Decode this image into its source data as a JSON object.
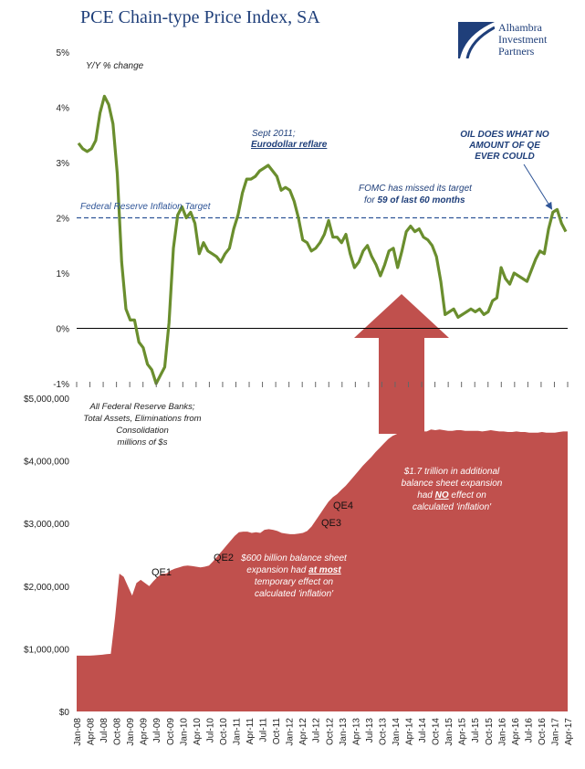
{
  "title": "PCE Chain-type Price Index, SA",
  "logo": {
    "line1": "Alhambra",
    "line2": "Investment",
    "line3": "Partners"
  },
  "colors": {
    "title": "#1f3f7a",
    "pce_line": "#6a8e2e",
    "target_line": "#2f5597",
    "area": "#c0504d",
    "arrow": "#c0504d"
  },
  "chart_data": [
    {
      "type": "line",
      "title": "PCE Chain-type Price Index, SA",
      "ylabel": "Y/Y % change",
      "ylim": [
        -1,
        5
      ],
      "y_ticks": [
        "-1%",
        "0%",
        "1%",
        "2%",
        "3%",
        "4%",
        "5%"
      ],
      "target": {
        "value": 2,
        "label": "Federal Reserve Inflation Target"
      },
      "series": [
        {
          "values": [
            3.35,
            3.25,
            3.2,
            3.25,
            3.4,
            3.9,
            4.2,
            4.05,
            3.7,
            2.8,
            1.2,
            0.35,
            0.15,
            0.15,
            -0.25,
            -0.35,
            -0.65,
            -0.75,
            -1.0,
            -0.85,
            -0.7,
            0.1,
            1.45,
            2.05,
            2.2,
            2.0,
            2.1,
            1.9,
            1.35,
            1.55,
            1.4,
            1.35,
            1.3,
            1.2,
            1.35,
            1.45,
            1.8,
            2.05,
            2.45,
            2.7,
            2.7,
            2.75,
            2.85,
            2.9,
            2.95,
            2.85,
            2.75,
            2.5,
            2.55,
            2.5,
            2.3,
            2.0,
            1.6,
            1.55,
            1.4,
            1.45,
            1.55,
            1.7,
            1.95,
            1.65,
            1.65,
            1.55,
            1.7,
            1.35,
            1.1,
            1.2,
            1.4,
            1.5,
            1.3,
            1.15,
            0.95,
            1.15,
            1.4,
            1.45,
            1.1,
            1.4,
            1.75,
            1.85,
            1.75,
            1.8,
            1.65,
            1.6,
            1.5,
            1.3,
            0.85,
            0.25,
            0.3,
            0.35,
            0.2,
            0.25,
            0.3,
            0.35,
            0.3,
            0.35,
            0.25,
            0.3,
            0.5,
            0.55,
            1.1,
            0.9,
            0.8,
            1.0,
            0.95,
            0.9,
            0.85,
            1.05,
            1.25,
            1.4,
            1.35,
            1.8,
            2.1,
            2.15,
            1.9,
            1.75
          ]
        }
      ],
      "annotations": [
        {
          "line1": "Sept 2011;",
          "line2": "Eurodollar  reflare"
        },
        {
          "line1": "FOMC has missed its target",
          "line2_prefix": "for ",
          "line2_bold": "59 of last 60 months"
        },
        {
          "line1": "OIL DOES WHAT NO",
          "line2": "AMOUNT OF QE",
          "line3": "EVER COULD"
        }
      ]
    },
    {
      "type": "area",
      "ylim": [
        0,
        5000000
      ],
      "y_ticks": [
        "$0",
        "$1,000,000",
        "$2,000,000",
        "$3,000,000",
        "$4,000,000",
        "$5,000,000"
      ],
      "x_ticks": [
        "Jan-08",
        "Apr-08",
        "Jul-08",
        "Oct-08",
        "Jan-09",
        "Apr-09",
        "Jul-09",
        "Oct-09",
        "Jan-10",
        "Apr-10",
        "Jul-10",
        "Oct-10",
        "Jan-11",
        "Apr-11",
        "Jul-11",
        "Oct-11",
        "Jan-12",
        "Apr-12",
        "Jul-12",
        "Oct-12",
        "Jan-13",
        "Apr-13",
        "Jul-13",
        "Oct-13",
        "Jan-14",
        "Apr-14",
        "Jul-14",
        "Oct-14",
        "Jan-15",
        "Apr-15",
        "Jul-15",
        "Oct-15",
        "Jan-16",
        "Apr-16",
        "Jul-16",
        "Oct-16",
        "Jan-17",
        "Apr-17"
      ],
      "series": [
        {
          "values": [
            890000,
            890000,
            890000,
            890000,
            895000,
            900000,
            905000,
            915000,
            920000,
            1500000,
            2200000,
            2150000,
            2000000,
            1850000,
            2050000,
            2100000,
            2050000,
            2000000,
            2080000,
            2150000,
            2200000,
            2200000,
            2250000,
            2280000,
            2300000,
            2320000,
            2330000,
            2320000,
            2310000,
            2300000,
            2310000,
            2330000,
            2400000,
            2480000,
            2560000,
            2640000,
            2720000,
            2800000,
            2860000,
            2870000,
            2870000,
            2850000,
            2860000,
            2850000,
            2900000,
            2910000,
            2900000,
            2880000,
            2850000,
            2840000,
            2830000,
            2830000,
            2840000,
            2850000,
            2880000,
            2950000,
            3050000,
            3150000,
            3250000,
            3350000,
            3420000,
            3470000,
            3540000,
            3600000,
            3680000,
            3760000,
            3840000,
            3920000,
            3990000,
            4060000,
            4140000,
            4210000,
            4280000,
            4350000,
            4400000,
            4430000,
            4460000,
            4490000,
            4490000,
            4480000,
            4480000,
            4470000,
            4470000,
            4500000,
            4490000,
            4500000,
            4490000,
            4480000,
            4480000,
            4490000,
            4490000,
            4480000,
            4480000,
            4480000,
            4480000,
            4470000,
            4480000,
            4490000,
            4480000,
            4470000,
            4470000,
            4460000,
            4460000,
            4470000,
            4460000,
            4460000,
            4450000,
            4450000,
            4450000,
            4460000,
            4450000,
            4450000,
            4450000,
            4460000,
            4470000,
            4470000
          ]
        }
      ],
      "annotations": {
        "source": [
          "All Federal Reserve Banks;",
          "Total Assets, Eliminations from",
          "Consolidation",
          "millions of $s"
        ],
        "qe_labels": [
          "QE1",
          "QE2",
          "QE3",
          "QE4"
        ],
        "note_600": {
          "line1": "$600 billion balance sheet",
          "line2_prefix": "expansion had ",
          "line2_bold": "at most",
          "line3": "temporary effect on",
          "line4": "calculated 'inflation'"
        },
        "note_17": {
          "line1": "$1.7 trillion in additional",
          "line2": "balance sheet expansion",
          "line3_prefix": "had ",
          "line3_bold": "NO",
          "line3_suffix": " effect on",
          "line4": "calculated 'inflation'"
        }
      }
    }
  ]
}
